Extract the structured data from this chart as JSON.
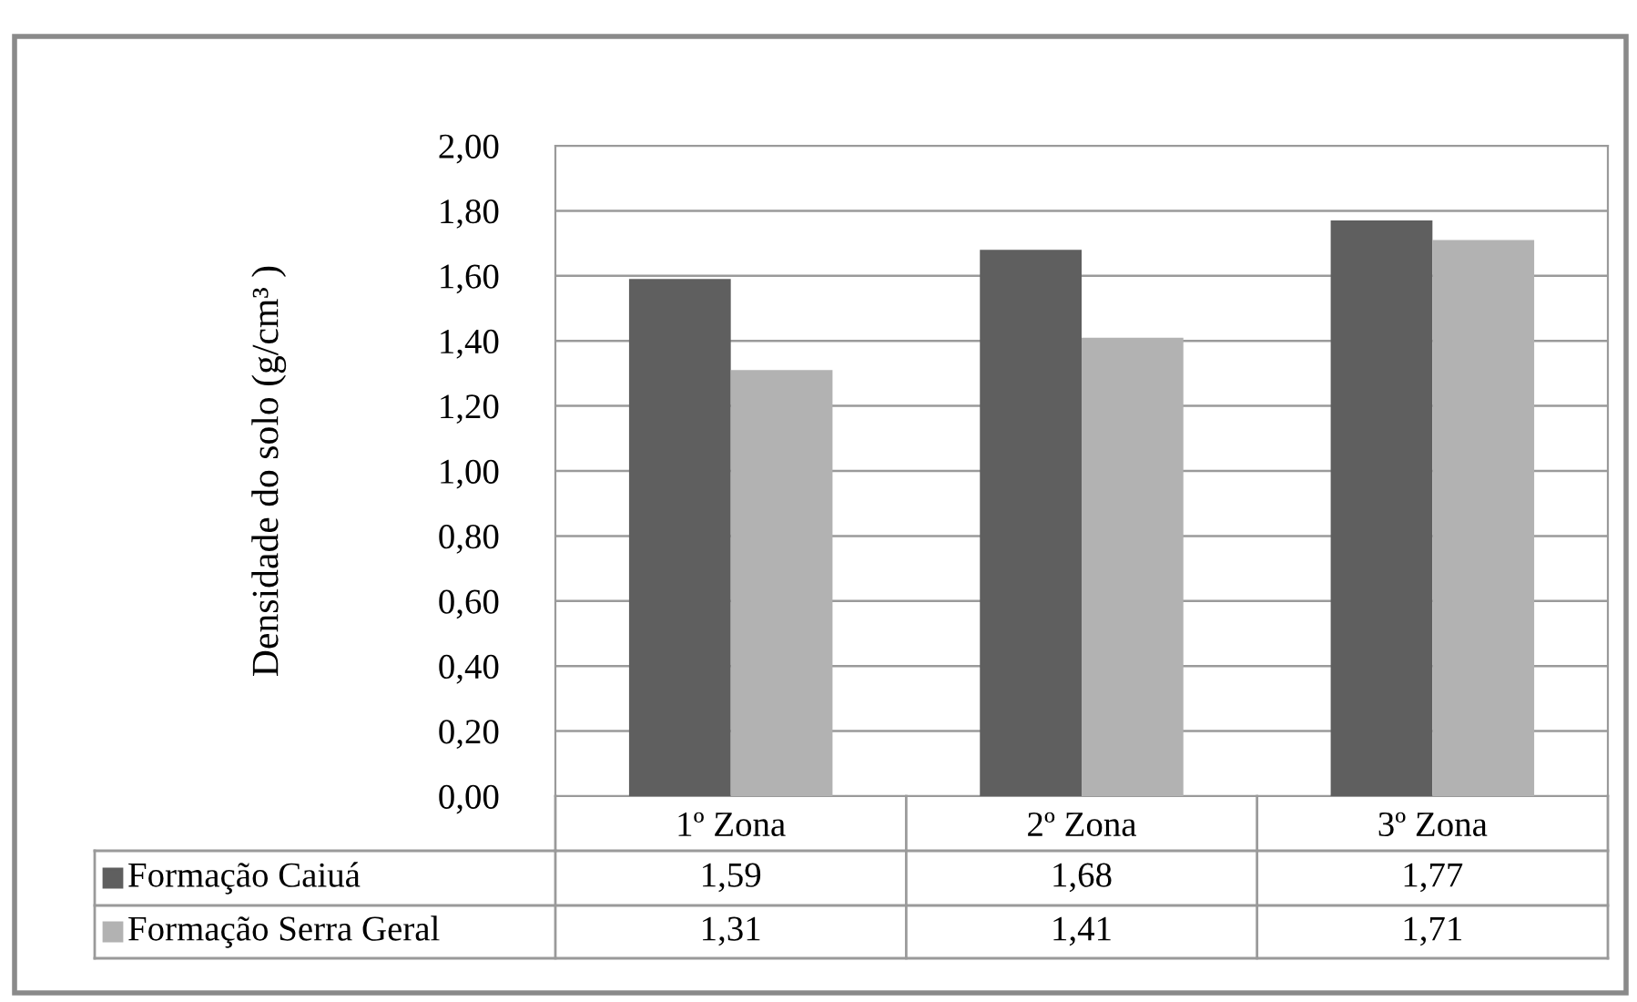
{
  "chart_data": {
    "type": "bar",
    "ylabel": "Densidade do solo (g/cm³ )",
    "categories": [
      "1º Zona",
      "2º Zona",
      "3º Zona"
    ],
    "series": [
      {
        "name": "Formação Caiuá",
        "color": "#5f5f5f",
        "values": [
          1.59,
          1.68,
          1.77
        ],
        "value_labels": [
          "1,59",
          "1,68",
          "1,77"
        ]
      },
      {
        "name": "Formação Serra Geral",
        "color": "#b2b2b2",
        "values": [
          1.31,
          1.41,
          1.71
        ],
        "value_labels": [
          "1,31",
          "1,41",
          "1,71"
        ]
      }
    ],
    "ylim": [
      0,
      2
    ],
    "yticks": [
      {
        "value": 0,
        "label": "0,00"
      },
      {
        "value": 0.2,
        "label": "0,20"
      },
      {
        "value": 0.4,
        "label": "0,40"
      },
      {
        "value": 0.6,
        "label": "0,60"
      },
      {
        "value": 0.8,
        "label": "0,80"
      },
      {
        "value": 1.0,
        "label": "1,00"
      },
      {
        "value": 1.2,
        "label": "1,20"
      },
      {
        "value": 1.4,
        "label": "1,40"
      },
      {
        "value": 1.6,
        "label": "1,60"
      },
      {
        "value": 1.8,
        "label": "1,80"
      },
      {
        "value": 2.0,
        "label": "2,00"
      }
    ],
    "grid": "y",
    "legend": "bottom"
  }
}
